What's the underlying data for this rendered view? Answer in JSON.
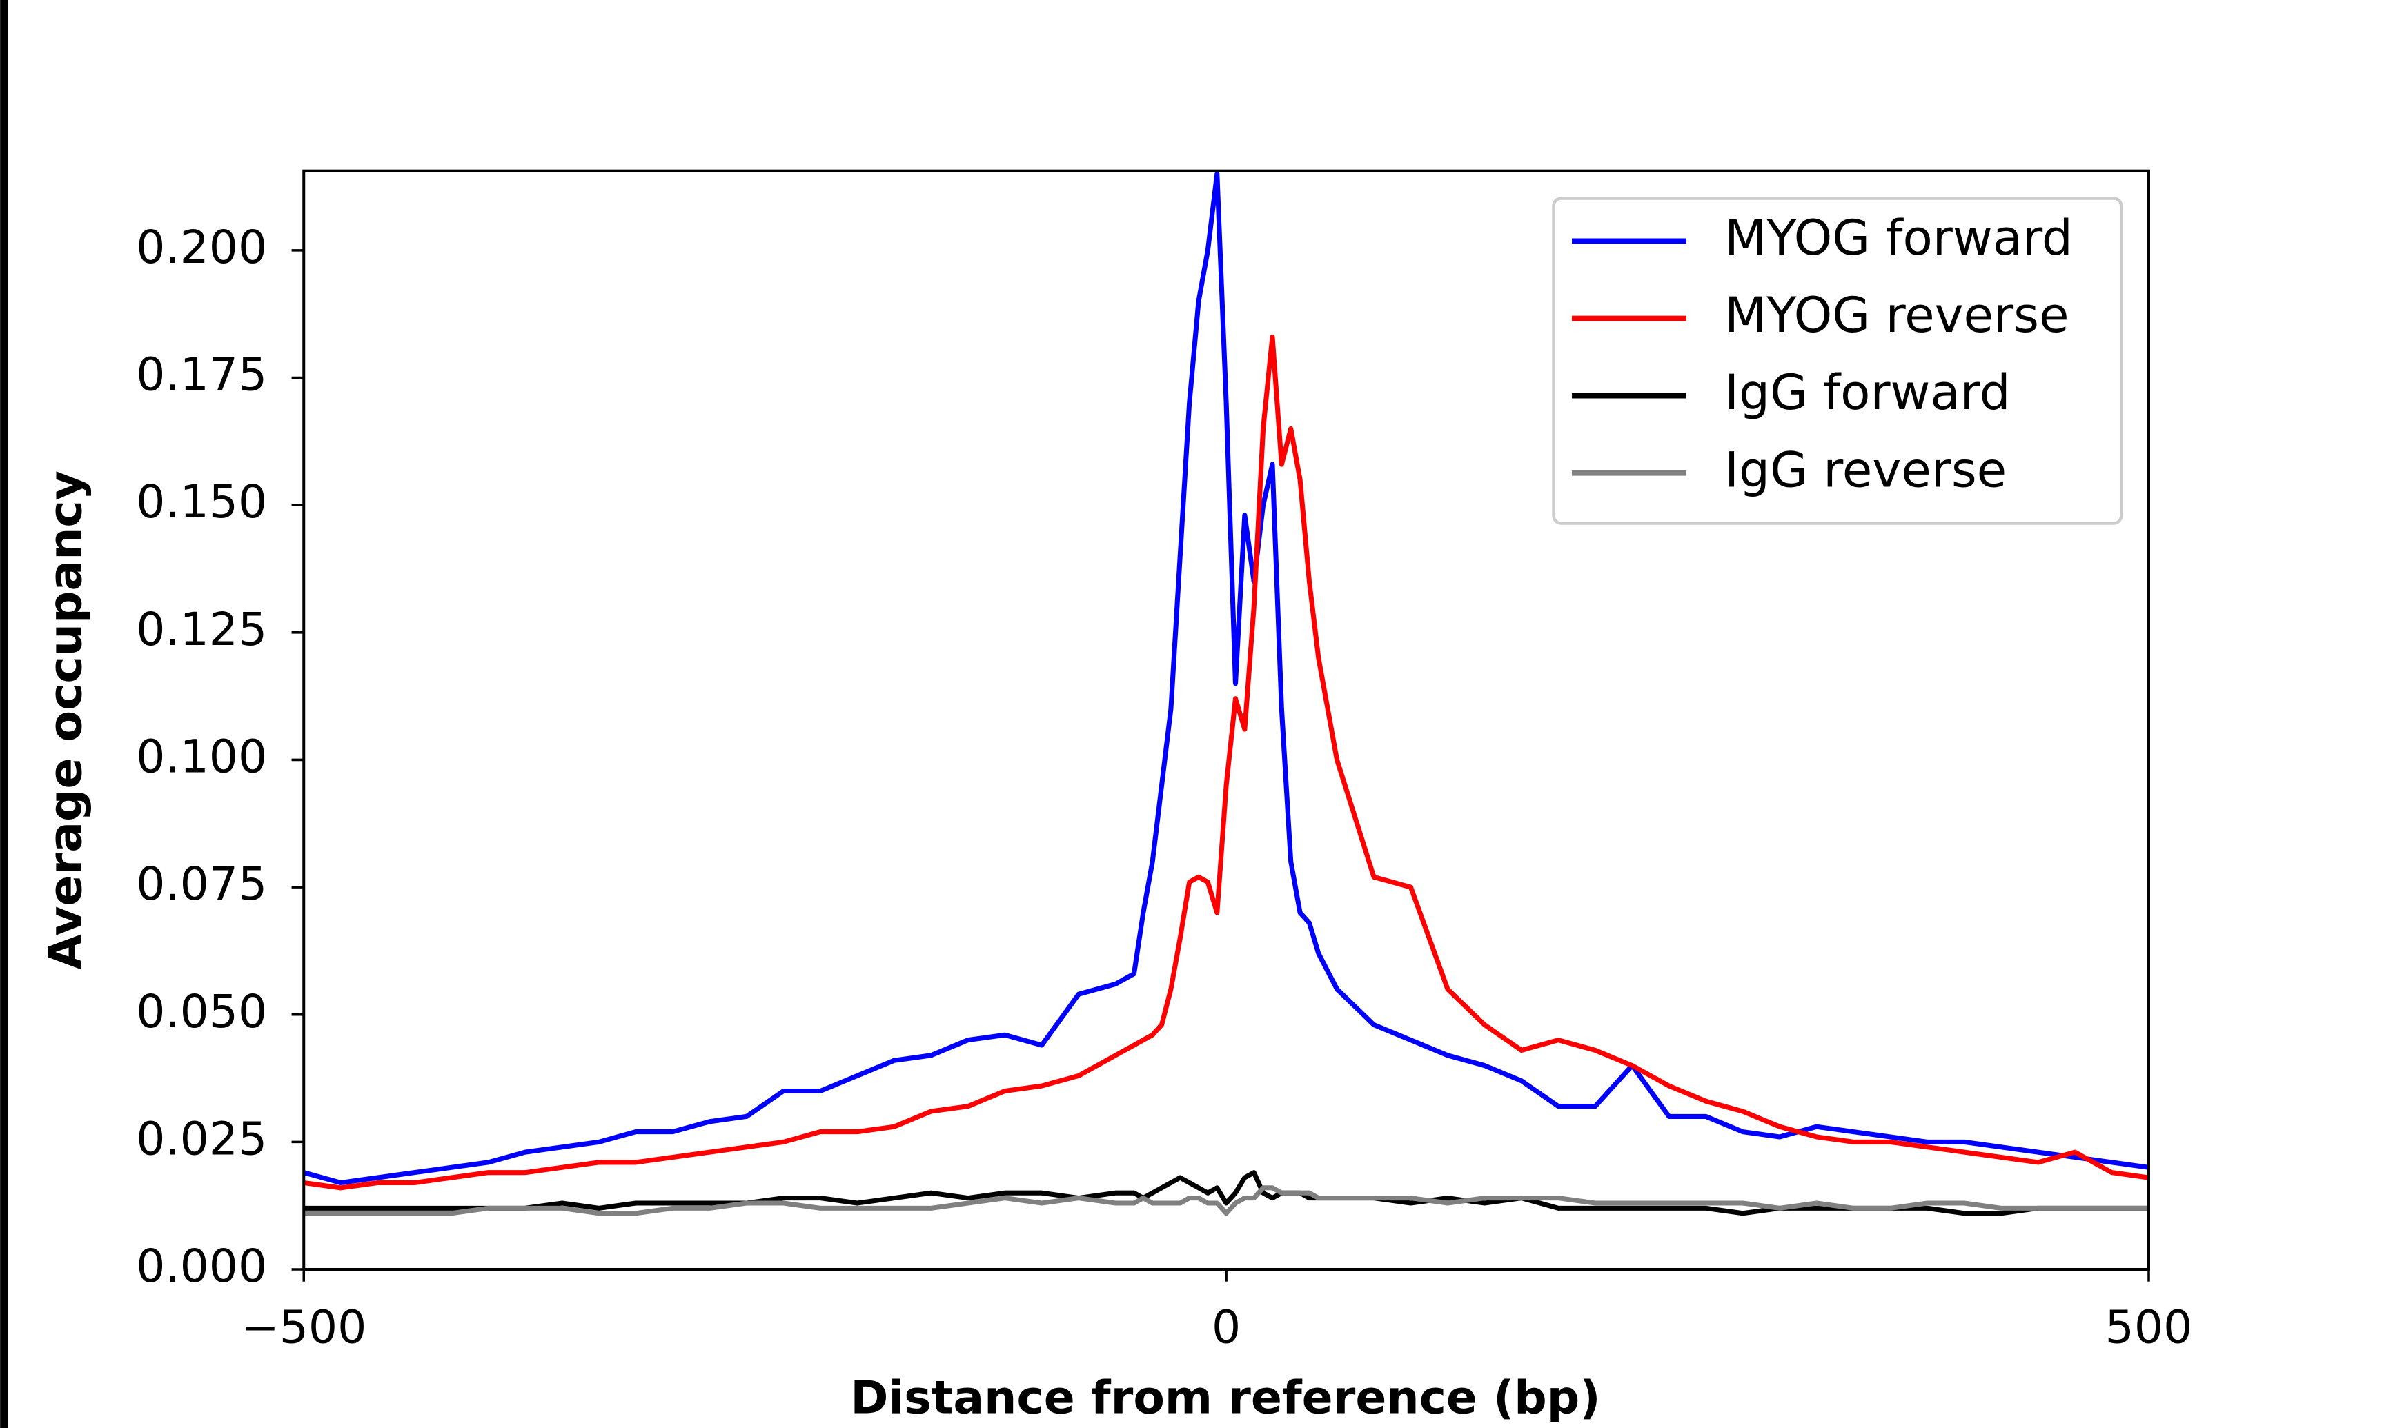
{
  "chart_data": {
    "type": "line",
    "xlabel": "Distance from reference (bp)",
    "ylabel": "Average occupancy",
    "x": [
      -500,
      -480,
      -460,
      -440,
      -420,
      -400,
      -380,
      -360,
      -340,
      -320,
      -300,
      -280,
      -260,
      -240,
      -220,
      -200,
      -180,
      -160,
      -140,
      -120,
      -100,
      -80,
      -60,
      -50,
      -45,
      -40,
      -35,
      -30,
      -25,
      -20,
      -15,
      -10,
      -5,
      0,
      5,
      10,
      15,
      20,
      25,
      30,
      35,
      40,
      45,
      50,
      60,
      80,
      100,
      120,
      140,
      160,
      180,
      200,
      220,
      240,
      260,
      280,
      300,
      320,
      340,
      360,
      380,
      400,
      420,
      440,
      460,
      480,
      500
    ],
    "series": [
      {
        "name": "MYOG forward",
        "color": "#0000ff",
        "values": [
          0.019,
          0.017,
          0.018,
          0.019,
          0.02,
          0.021,
          0.023,
          0.024,
          0.025,
          0.027,
          0.027,
          0.029,
          0.03,
          0.035,
          0.035,
          0.038,
          0.041,
          0.042,
          0.045,
          0.046,
          0.044,
          0.054,
          0.056,
          0.058,
          0.07,
          0.08,
          0.095,
          0.11,
          0.14,
          0.17,
          0.19,
          0.2,
          0.215,
          0.17,
          0.115,
          0.148,
          0.135,
          0.15,
          0.158,
          0.11,
          0.08,
          0.07,
          0.068,
          0.062,
          0.055,
          0.048,
          0.045,
          0.042,
          0.04,
          0.037,
          0.032,
          0.032,
          0.04,
          0.03,
          0.03,
          0.027,
          0.026,
          0.028,
          0.027,
          0.026,
          0.025,
          0.025,
          0.024,
          0.023,
          0.022,
          0.021,
          0.02
        ]
      },
      {
        "name": "MYOG reverse",
        "color": "#ff0000",
        "values": [
          0.017,
          0.016,
          0.017,
          0.017,
          0.018,
          0.019,
          0.019,
          0.02,
          0.021,
          0.021,
          0.022,
          0.023,
          0.024,
          0.025,
          0.027,
          0.027,
          0.028,
          0.031,
          0.032,
          0.035,
          0.036,
          0.038,
          0.042,
          0.044,
          0.045,
          0.046,
          0.048,
          0.055,
          0.065,
          0.076,
          0.077,
          0.076,
          0.07,
          0.095,
          0.112,
          0.106,
          0.13,
          0.165,
          0.183,
          0.158,
          0.165,
          0.155,
          0.135,
          0.12,
          0.1,
          0.077,
          0.075,
          0.055,
          0.048,
          0.043,
          0.045,
          0.043,
          0.04,
          0.036,
          0.033,
          0.031,
          0.028,
          0.026,
          0.025,
          0.025,
          0.024,
          0.023,
          0.022,
          0.021,
          0.023,
          0.019,
          0.018
        ]
      },
      {
        "name": "IgG forward",
        "color": "#000000",
        "values": [
          0.012,
          0.012,
          0.012,
          0.012,
          0.012,
          0.012,
          0.012,
          0.013,
          0.012,
          0.013,
          0.013,
          0.013,
          0.013,
          0.014,
          0.014,
          0.013,
          0.014,
          0.015,
          0.014,
          0.015,
          0.015,
          0.014,
          0.015,
          0.015,
          0.014,
          0.015,
          0.016,
          0.017,
          0.018,
          0.017,
          0.016,
          0.015,
          0.016,
          0.013,
          0.015,
          0.018,
          0.019,
          0.015,
          0.014,
          0.015,
          0.015,
          0.015,
          0.014,
          0.014,
          0.014,
          0.014,
          0.013,
          0.014,
          0.013,
          0.014,
          0.012,
          0.012,
          0.012,
          0.012,
          0.012,
          0.011,
          0.012,
          0.012,
          0.012,
          0.012,
          0.012,
          0.011,
          0.011,
          0.012,
          0.012,
          0.012,
          0.012
        ]
      },
      {
        "name": "IgG reverse",
        "color": "#808080",
        "values": [
          0.011,
          0.011,
          0.011,
          0.011,
          0.011,
          0.012,
          0.012,
          0.012,
          0.011,
          0.011,
          0.012,
          0.012,
          0.013,
          0.013,
          0.012,
          0.012,
          0.012,
          0.012,
          0.013,
          0.014,
          0.013,
          0.014,
          0.013,
          0.013,
          0.014,
          0.013,
          0.013,
          0.013,
          0.013,
          0.014,
          0.014,
          0.013,
          0.013,
          0.011,
          0.013,
          0.014,
          0.014,
          0.016,
          0.016,
          0.015,
          0.015,
          0.015,
          0.015,
          0.014,
          0.014,
          0.014,
          0.014,
          0.013,
          0.014,
          0.014,
          0.014,
          0.013,
          0.013,
          0.013,
          0.013,
          0.013,
          0.012,
          0.013,
          0.012,
          0.012,
          0.013,
          0.013,
          0.012,
          0.012,
          0.012,
          0.012,
          0.012
        ]
      }
    ],
    "xlim": [
      -500,
      500
    ],
    "xticks": [
      {
        "value": -500,
        "label": "−500"
      },
      0,
      500
    ],
    "ylim": [
      0,
      0.2156
    ],
    "yticks": [
      {
        "value": 0,
        "label": "0.000"
      },
      0.025,
      {
        "value": 0.05,
        "label": "0.050"
      },
      0.075,
      {
        "value": 0.1,
        "label": "0.100"
      },
      0.125,
      {
        "value": 0.15,
        "label": "0.150"
      },
      0.175,
      {
        "value": 0.2,
        "label": "0.200"
      }
    ],
    "legend": "upper right"
  }
}
